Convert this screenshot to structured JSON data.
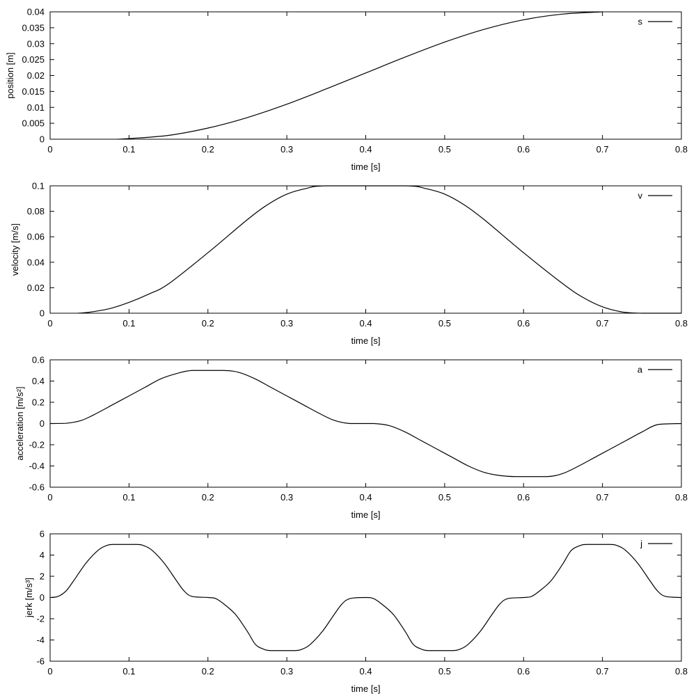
{
  "chart_data": [
    {
      "type": "line",
      "xlabel": "time [s]",
      "ylabel": "position [m]",
      "xlim": [
        0,
        0.8
      ],
      "ylim": [
        0,
        0.04
      ],
      "xticks": [
        "0",
        "0.1",
        "0.2",
        "0.3",
        "0.4",
        "0.5",
        "0.6",
        "0.7",
        "0.8"
      ],
      "yticks": [
        "0",
        "0.005",
        "0.01",
        "0.015",
        "0.02",
        "0.025",
        "0.03",
        "0.035",
        "0.04"
      ],
      "grid": false,
      "legend": "top-right",
      "series": [
        {
          "name": "s",
          "x": [
            0.085,
            0.1,
            0.15,
            0.2,
            0.25,
            0.3,
            0.35,
            0.4,
            0.45,
            0.5,
            0.55,
            0.6,
            0.65,
            0.7
          ],
          "y": [
            0,
            0.0002,
            0.0012,
            0.0035,
            0.0068,
            0.011,
            0.0158,
            0.0208,
            0.0258,
            0.0305,
            0.0345,
            0.0375,
            0.0393,
            0.04
          ]
        }
      ]
    },
    {
      "type": "line",
      "xlabel": "time [s]",
      "ylabel": "velocity [m/s]",
      "xlim": [
        0,
        0.8
      ],
      "ylim": [
        0,
        0.1
      ],
      "xticks": [
        "0",
        "0.1",
        "0.2",
        "0.3",
        "0.4",
        "0.5",
        "0.6",
        "0.7",
        "0.8"
      ],
      "yticks": [
        "0",
        "0.02",
        "0.04",
        "0.06",
        "0.08",
        "0.1"
      ],
      "grid": false,
      "legend": "top-right",
      "series": [
        {
          "name": "v",
          "x": [
            0.035,
            0.05,
            0.075,
            0.1,
            0.125,
            0.15,
            0.2,
            0.25,
            0.275,
            0.3,
            0.325,
            0.35,
            0.45,
            0.475,
            0.5,
            0.525,
            0.55,
            0.6,
            0.65,
            0.675,
            0.7,
            0.725,
            0.75,
            0.8
          ],
          "y": [
            0,
            0.0008,
            0.0035,
            0.0085,
            0.015,
            0.023,
            0.0475,
            0.0735,
            0.085,
            0.0935,
            0.098,
            0.1,
            0.1,
            0.098,
            0.0935,
            0.085,
            0.0735,
            0.0475,
            0.023,
            0.0125,
            0.005,
            0.001,
            0,
            0
          ]
        }
      ]
    },
    {
      "type": "line",
      "xlabel": "time [s]",
      "ylabel": "acceleration [m/s²]",
      "xlim": [
        0,
        0.8
      ],
      "ylim": [
        -0.6,
        0.6
      ],
      "xticks": [
        "0",
        "0.1",
        "0.2",
        "0.3",
        "0.4",
        "0.5",
        "0.6",
        "0.7",
        "0.8"
      ],
      "yticks": [
        "-0.6",
        "-0.4",
        "-0.2",
        "0",
        "0.2",
        "0.4",
        "0.6"
      ],
      "grid": false,
      "legend": "top-right",
      "series": [
        {
          "name": "a",
          "x": [
            0,
            0.02,
            0.04,
            0.06,
            0.08,
            0.1,
            0.12,
            0.14,
            0.16,
            0.18,
            0.22,
            0.24,
            0.26,
            0.28,
            0.3,
            0.32,
            0.34,
            0.36,
            0.38,
            0.41,
            0.43,
            0.45,
            0.47,
            0.49,
            0.51,
            0.53,
            0.55,
            0.57,
            0.59,
            0.63,
            0.65,
            0.67,
            0.69,
            0.71,
            0.73,
            0.75,
            0.77,
            0.8
          ],
          "y": [
            0,
            0.002,
            0.03,
            0.1,
            0.18,
            0.26,
            0.34,
            0.42,
            0.47,
            0.5,
            0.5,
            0.48,
            0.42,
            0.34,
            0.26,
            0.18,
            0.1,
            0.03,
            0,
            0,
            -0.02,
            -0.08,
            -0.16,
            -0.24,
            -0.32,
            -0.4,
            -0.46,
            -0.49,
            -0.5,
            -0.5,
            -0.47,
            -0.4,
            -0.32,
            -0.24,
            -0.16,
            -0.08,
            -0.01,
            0
          ]
        }
      ]
    },
    {
      "type": "line",
      "xlabel": "time [s]",
      "ylabel": "jerk [m/s³]",
      "xlim": [
        0,
        0.8
      ],
      "ylim": [
        -6,
        6
      ],
      "xticks": [
        "0",
        "0.1",
        "0.2",
        "0.3",
        "0.4",
        "0.5",
        "0.6",
        "0.7",
        "0.8"
      ],
      "yticks": [
        "-6",
        "-4",
        "-2",
        "0",
        "2",
        "4",
        "6"
      ],
      "grid": false,
      "legend": "top-right",
      "series": [
        {
          "name": "j",
          "x": [
            0,
            0.01,
            0.02,
            0.03,
            0.045,
            0.06,
            0.07,
            0.08,
            0.11,
            0.12,
            0.13,
            0.145,
            0.16,
            0.17,
            0.18,
            0.2,
            0.21,
            0.22,
            0.235,
            0.25,
            0.26,
            0.27,
            0.28,
            0.31,
            0.32,
            0.33,
            0.345,
            0.36,
            0.37,
            0.38,
            0.4,
            0.41,
            0.42,
            0.435,
            0.45,
            0.46,
            0.47,
            0.48,
            0.51,
            0.52,
            0.53,
            0.545,
            0.56,
            0.57,
            0.58,
            0.6,
            0.61,
            0.62,
            0.635,
            0.65,
            0.66,
            0.67,
            0.68,
            0.71,
            0.72,
            0.73,
            0.745,
            0.76,
            0.77,
            0.78,
            0.8
          ],
          "y": [
            0,
            0.1,
            0.6,
            1.6,
            3.2,
            4.4,
            4.85,
            5,
            5,
            4.85,
            4.4,
            3.2,
            1.6,
            0.6,
            0.1,
            0,
            -0.1,
            -0.6,
            -1.6,
            -3.2,
            -4.4,
            -4.85,
            -5,
            -5,
            -4.85,
            -4.4,
            -3.2,
            -1.6,
            -0.6,
            -0.1,
            0,
            -0.1,
            -0.6,
            -1.6,
            -3.2,
            -4.4,
            -4.85,
            -5,
            -5,
            -4.85,
            -4.4,
            -3.2,
            -1.6,
            -0.6,
            -0.1,
            0,
            0.1,
            0.6,
            1.6,
            3.2,
            4.4,
            4.85,
            5,
            5,
            4.85,
            4.4,
            3.2,
            1.6,
            0.6,
            0.1,
            0
          ]
        }
      ]
    }
  ]
}
